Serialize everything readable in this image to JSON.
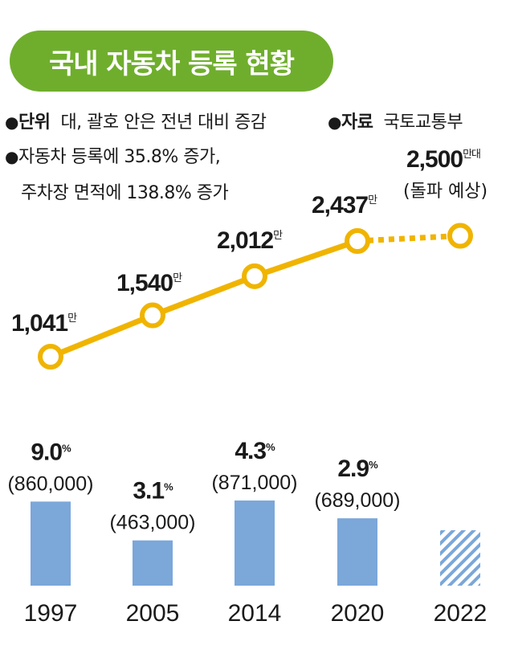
{
  "title": "국내 자동차 등록 현황",
  "info": {
    "unit_label": "단위",
    "unit_text": "대, 괄호 안은 전년 대비 증감",
    "source_label": "자료",
    "source_text": "국토교통부",
    "bullet_symbol": "●",
    "note_line1": "자동차 등록에 35.8% 증가,",
    "note_line2": "주차장 면적에 138.8% 증가"
  },
  "colors": {
    "title_bg": "#6fae2d",
    "line": "#f0b400",
    "bar": "#7ba7d9",
    "bar_hatch": "#7ba7d9"
  },
  "chart_data": [
    {
      "type": "line",
      "x": [
        "1997",
        "2005",
        "2014",
        "2020",
        "2022"
      ],
      "values": [
        1041,
        1540,
        2012,
        2437,
        2500
      ],
      "labels": [
        "1,041",
        "1,540",
        "2,012",
        "2,437",
        "2,500"
      ],
      "unit": "만",
      "last_unit": "만대",
      "projection_note": "(돌파 예상)",
      "projected_index": 4
    },
    {
      "type": "bar",
      "categories": [
        "1997",
        "2005",
        "2014",
        "2020",
        "2022"
      ],
      "values": [
        860000,
        463000,
        871000,
        689000,
        null
      ],
      "value_labels": [
        "(860,000)",
        "(463,000)",
        "(871,000)",
        "(689,000)",
        ""
      ],
      "percent_labels": [
        "9.0",
        "3.1",
        "4.3",
        "2.9",
        ""
      ],
      "percent_unit": "%",
      "projected_index": 4
    }
  ]
}
